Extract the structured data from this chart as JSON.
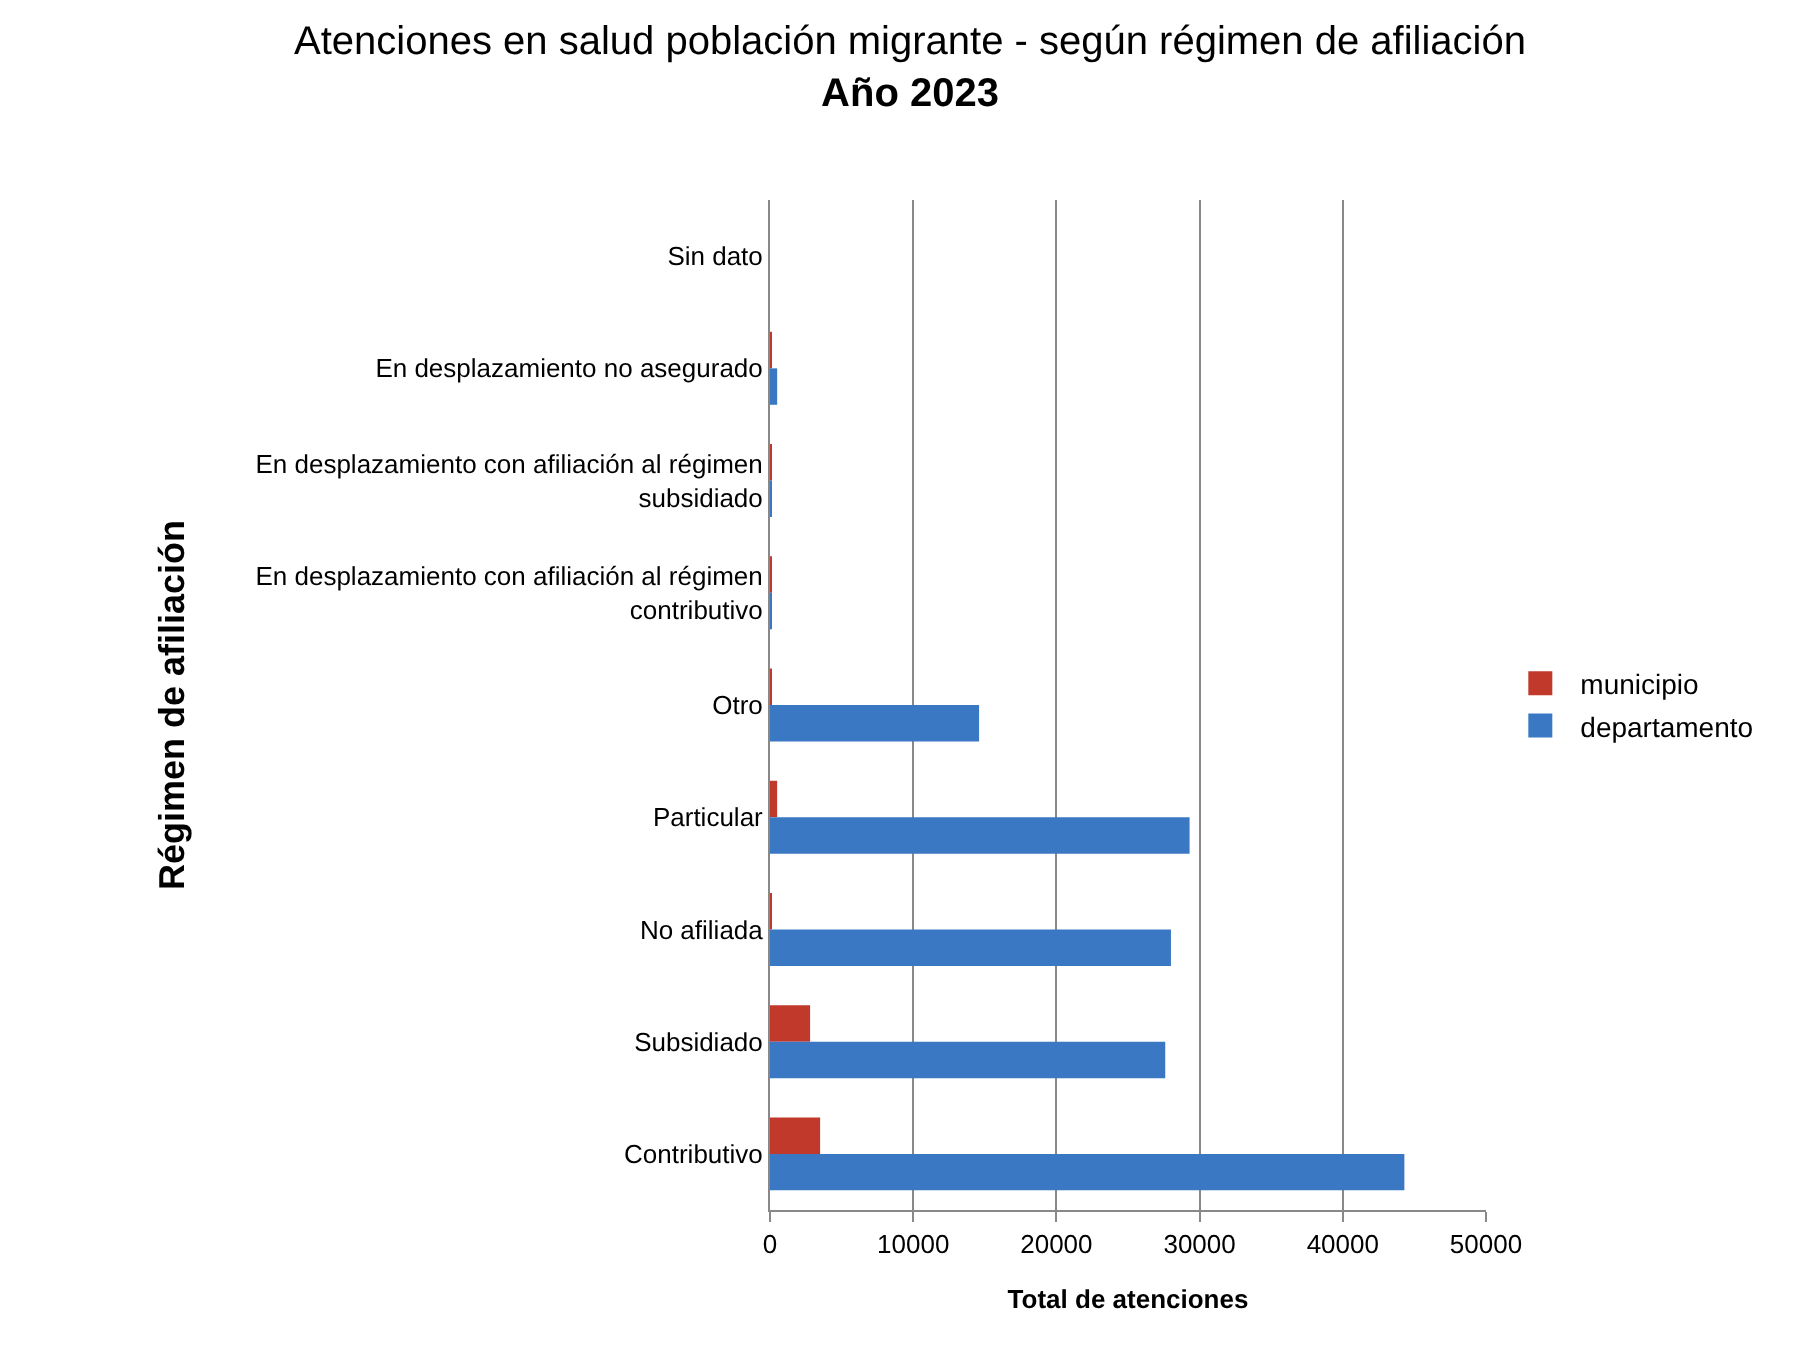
{
  "chart_data": {
    "type": "bar",
    "orientation": "horizontal",
    "title": "Atenciones en salud población migrante - según régimen de afiliación",
    "subtitle": "Año 2023",
    "xlabel": "Total de atenciones",
    "ylabel": "Régimen de afiliación",
    "categories": [
      "Sin dato",
      "En desplazamiento no asegurado",
      "En desplazamiento con afiliación al régimen subsidiado",
      "En desplazamiento con afiliación al régimen contributivo",
      "Otro",
      "Particular",
      "No afiliada",
      "Subsidiado",
      "Contributivo"
    ],
    "series": [
      {
        "name": "municipio",
        "color": "#c0392b",
        "values": [
          0,
          100,
          100,
          100,
          100,
          500,
          100,
          2800,
          3500
        ]
      },
      {
        "name": "departamento",
        "color": "#3a78c4",
        "values": [
          0,
          500,
          100,
          100,
          14600,
          29300,
          28000,
          27600,
          44300
        ]
      }
    ],
    "xlim": [
      0,
      50000
    ],
    "xticks": [
      0,
      10000,
      20000,
      30000,
      40000,
      50000
    ],
    "grid": "x",
    "legend": "right"
  }
}
